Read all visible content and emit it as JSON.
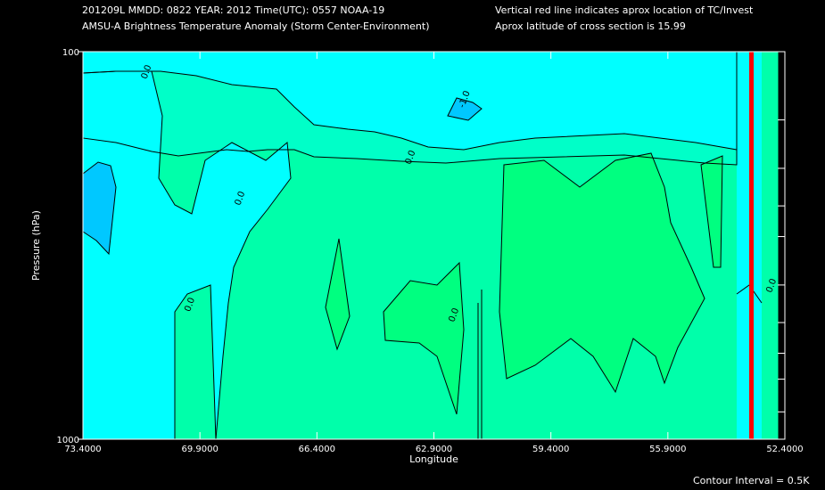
{
  "header": {
    "line1_left": "201209L  MMDD: 0822 YEAR: 2012 Time(UTC): 0557 NOAA-19",
    "line2_left": "AMSU-A Brightness Temperature Anomaly (Storm Center-Environment)",
    "line1_right": "Vertical red line indicates aprox location of TC/Invest",
    "line2_right": "Aprox latitude of cross section is 15.99"
  },
  "footer": {
    "contour_interval": "Contour Interval = 0.5K"
  },
  "colors": {
    "background": "#000000",
    "cyan": "#00FFFF",
    "aquamarine": "#00FFC8",
    "mint": "#00FFAA",
    "green": "#00FF80",
    "blue": "#00C8FF",
    "tc_line": "#FF0000"
  },
  "chart_data": {
    "type": "contour",
    "xlabel": "Longitude",
    "ylabel": "Pressure (hPa)",
    "x_ticks": [
      "73.4000",
      "69.9000",
      "66.4000",
      "62.9000",
      "59.4000",
      "55.9000",
      "52.4000"
    ],
    "x_tick_values": [
      73.4,
      69.9,
      66.4,
      62.9,
      59.4,
      55.9,
      52.4
    ],
    "xlim": [
      73.4,
      52.4
    ],
    "y_ticks": [
      "100",
      "1000"
    ],
    "ylim": [
      100,
      1000
    ],
    "y_scale": "log",
    "y_minor_ticks": [
      150,
      200,
      250,
      300,
      400,
      500,
      600,
      700,
      850
    ],
    "tc_longitude": 53.4,
    "data_edge_longitude": 52.6,
    "contour_labels": [
      {
        "text": "0.0",
        "lon": 71.5,
        "p": 118
      },
      {
        "text": "0.0",
        "lon": 68.7,
        "p": 250
      },
      {
        "text": "0.0",
        "lon": 70.2,
        "p": 470
      },
      {
        "text": "-1.0",
        "lon": 62.0,
        "p": 140
      },
      {
        "text": "0.0",
        "lon": 63.6,
        "p": 196
      },
      {
        "text": "0.0",
        "lon": 62.3,
        "p": 500
      },
      {
        "text": "0.0",
        "lon": 52.8,
        "p": 420
      }
    ]
  }
}
